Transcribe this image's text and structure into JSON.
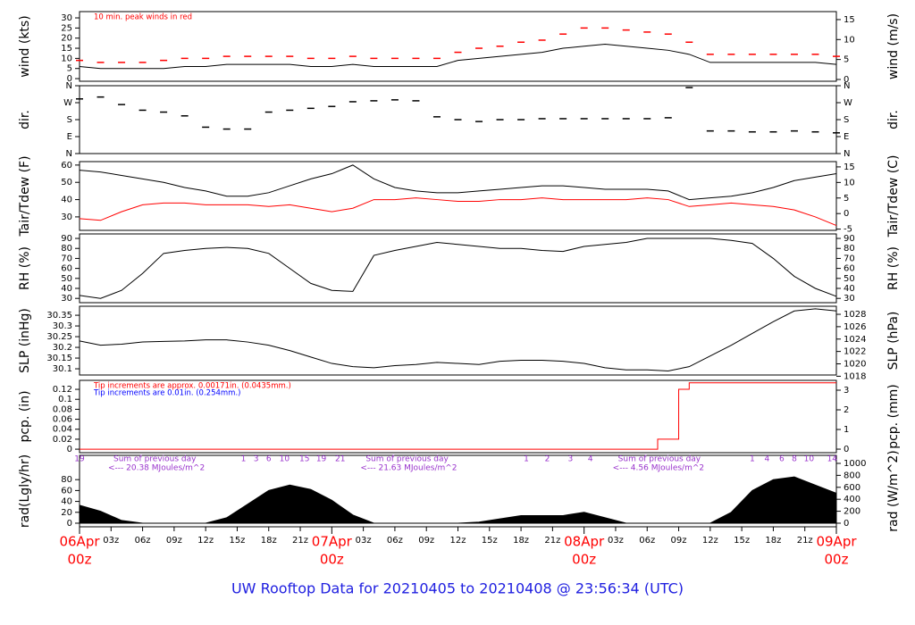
{
  "title": "UW Rooftop Data for 20210405  to  20210408 @ 23:56:34  (UTC)",
  "time_axis": {
    "xlim": [
      0,
      72
    ],
    "x": [
      0,
      2,
      4,
      6,
      8,
      10,
      12,
      14,
      16,
      18,
      20,
      22,
      24,
      26,
      28,
      30,
      32,
      34,
      36,
      38,
      40,
      42,
      44,
      46,
      48,
      50,
      52,
      54,
      56,
      58,
      60,
      62,
      64,
      66,
      68,
      70,
      72
    ],
    "xticks": [
      {
        "value": 3,
        "label": "03z"
      },
      {
        "value": 6,
        "label": "06z"
      },
      {
        "value": 9,
        "label": "09z"
      },
      {
        "value": 12,
        "label": "12z"
      },
      {
        "value": 15,
        "label": "15z"
      },
      {
        "value": 18,
        "label": "18z"
      },
      {
        "value": 21,
        "label": "21z"
      },
      {
        "value": 27,
        "label": "03z"
      },
      {
        "value": 30,
        "label": "06z"
      },
      {
        "value": 33,
        "label": "09z"
      },
      {
        "value": 36,
        "label": "12z"
      },
      {
        "value": 39,
        "label": "15z"
      },
      {
        "value": 42,
        "label": "18z"
      },
      {
        "value": 45,
        "label": "21z"
      },
      {
        "value": 51,
        "label": "03z"
      },
      {
        "value": 54,
        "label": "06z"
      },
      {
        "value": 57,
        "label": "09z"
      },
      {
        "value": 60,
        "label": "12z"
      },
      {
        "value": 63,
        "label": "15z"
      },
      {
        "value": 66,
        "label": "18z"
      },
      {
        "value": 69,
        "label": "21z"
      }
    ],
    "date_ticks": [
      {
        "value": 0,
        "date": "06Apr",
        "time": "00z"
      },
      {
        "value": 24,
        "date": "07Apr",
        "time": "00z"
      },
      {
        "value": 48,
        "date": "08Apr",
        "time": "00z"
      },
      {
        "value": 72,
        "date": "09Apr",
        "time": "00z"
      }
    ],
    "date_color": "#ff0000"
  },
  "chart_data": [
    {
      "type": "line",
      "y_label": "wind (kts)",
      "y2_label": "wind (m/s)",
      "ylim": [
        -1.3,
        33.1
      ],
      "yticks": [
        0,
        5,
        10,
        15,
        20,
        25,
        30
      ],
      "y2lim": [
        -0.45,
        17
      ],
      "y2ticks": [
        0,
        5,
        10,
        15
      ],
      "annotations": [
        {
          "text": "10 min. peak winds in red",
          "color": "#ff0000"
        }
      ],
      "series": [
        {
          "mark": "line",
          "color": "#000000",
          "values": [
            6,
            5,
            5,
            5,
            5,
            6,
            6,
            7,
            7,
            7,
            7,
            6,
            6,
            7,
            6,
            6,
            6,
            6,
            9,
            10,
            11,
            12,
            13,
            15,
            16,
            17,
            16,
            15,
            14,
            12,
            8,
            8,
            8,
            8,
            8,
            8,
            7
          ]
        },
        {
          "mark": "dash",
          "color": "#ff0000",
          "values": [
            9,
            8,
            8,
            8,
            9,
            10,
            10,
            11,
            11,
            11,
            11,
            10,
            10,
            11,
            10,
            10,
            10,
            10,
            13,
            15,
            16,
            18,
            19,
            22,
            25,
            25,
            24,
            23,
            22,
            18,
            12,
            12,
            12,
            12,
            12,
            12,
            11
          ]
        }
      ]
    },
    {
      "type": "scatter",
      "y_label": "dir.",
      "y2_label": "dir.",
      "mirror_ticks": true,
      "ylim": [
        0,
        360
      ],
      "yticks": [
        {
          "value": 0,
          "label": "N"
        },
        {
          "value": 90,
          "label": "E"
        },
        {
          "value": 180,
          "label": "S"
        },
        {
          "value": 270,
          "label": "W"
        },
        {
          "value": 360,
          "label": "N"
        }
      ],
      "series": [
        {
          "mark": "dash",
          "color": "#000000",
          "values": [
            290,
            300,
            260,
            230,
            220,
            200,
            140,
            130,
            130,
            220,
            230,
            240,
            250,
            275,
            280,
            285,
            280,
            195,
            180,
            170,
            180,
            180,
            185,
            185,
            185,
            185,
            185,
            185,
            190,
            350,
            120,
            120,
            115,
            115,
            120,
            115,
            110
          ]
        }
      ]
    },
    {
      "type": "line",
      "y_label": "Tair/Tdew (F)",
      "y2_label": "Tair/Tdew (C)",
      "ylim": [
        22.2,
        62
      ],
      "yticks": [
        30,
        40,
        50,
        60
      ],
      "y2lim": [
        -5.4,
        16.7
      ],
      "y2ticks": [
        -5,
        0,
        5,
        10,
        15
      ],
      "series": [
        {
          "mark": "line",
          "color": "#000000",
          "values": [
            57,
            56,
            54,
            52,
            50,
            47,
            45,
            42,
            42,
            44,
            48,
            52,
            55,
            60,
            52,
            47,
            45,
            44,
            44,
            45,
            46,
            47,
            48,
            48,
            47,
            46,
            46,
            46,
            45,
            40,
            41,
            42,
            44,
            47,
            51,
            53,
            55
          ]
        },
        {
          "mark": "line",
          "color": "#ff0000",
          "values": [
            29,
            28,
            33,
            37,
            38,
            38,
            37,
            37,
            37,
            36,
            37,
            35,
            33,
            35,
            40,
            40,
            41,
            40,
            39,
            39,
            40,
            40,
            41,
            40,
            40,
            40,
            40,
            41,
            40,
            36,
            37,
            38,
            37,
            36,
            34,
            30,
            25
          ]
        }
      ]
    },
    {
      "type": "line",
      "y_label": "RH (%)",
      "y2_label": "RH (%)",
      "mirror_ticks": true,
      "ylim": [
        25.7,
        94.5
      ],
      "yticks": [
        30,
        40,
        50,
        60,
        70,
        80,
        90
      ],
      "series": [
        {
          "mark": "line",
          "color": "#000000",
          "values": [
            33,
            30,
            38,
            55,
            75,
            78,
            80,
            81,
            80,
            75,
            60,
            45,
            38,
            37,
            73,
            78,
            82,
            86,
            84,
            82,
            80,
            80,
            78,
            77,
            82,
            84,
            86,
            90,
            90,
            90,
            90,
            88,
            85,
            70,
            52,
            40,
            32
          ]
        }
      ]
    },
    {
      "type": "line",
      "y_label": "SLP (inHg)",
      "y2_label": "SLP (hPa)",
      "ylim": [
        30.071,
        30.392
      ],
      "yticks": [
        30.1,
        30.15,
        30.2,
        30.25,
        30.3,
        30.35
      ],
      "y2lim": [
        1018.2,
        1029.3
      ],
      "y2ticks": [
        1018,
        1020,
        1022,
        1024,
        1026,
        1028
      ],
      "series": [
        {
          "mark": "line",
          "color": "#000000",
          "values": [
            30.23,
            30.21,
            30.215,
            30.225,
            30.228,
            30.23,
            30.235,
            30.235,
            30.225,
            30.21,
            30.185,
            30.155,
            30.125,
            30.11,
            30.105,
            30.115,
            30.12,
            30.13,
            30.125,
            30.12,
            30.135,
            30.14,
            30.14,
            30.135,
            30.125,
            30.105,
            30.095,
            30.095,
            30.09,
            30.11,
            30.16,
            30.21,
            30.265,
            30.32,
            30.37,
            30.38,
            30.37
          ]
        }
      ]
    },
    {
      "type": "line",
      "y_label": "pcp. (in)",
      "y2_label": "pcp. (mm)",
      "ylim": [
        -0.007,
        0.138
      ],
      "yticks": [
        0,
        0.02,
        0.04,
        0.06,
        0.08,
        0.1,
        0.12
      ],
      "y2lim": [
        -0.18,
        3.5
      ],
      "y2ticks": [
        0,
        1,
        2,
        3
      ],
      "annotations": [
        {
          "text": "Tip increments are approx. 0.00171in. (0.0435mm.)",
          "color": "#ff0000"
        },
        {
          "text": "Tip increments are 0.01in. (0.254mm.)",
          "color": "#0000ff"
        }
      ],
      "series": [
        {
          "mark": "line",
          "color": "#ff0000",
          "x": [
            0,
            55,
            55,
            57,
            57,
            58,
            58,
            72
          ],
          "values": [
            0,
            0,
            0.02,
            0.02,
            0.12,
            0.12,
            0.133,
            0.133
          ]
        }
      ]
    },
    {
      "type": "area",
      "y_label": "rad(Lgly/hr)",
      "y2_label": "rad (W/m^2)",
      "ylim": [
        -6.6,
        124.6
      ],
      "yticks": [
        0,
        20,
        40,
        60,
        80
      ],
      "y2lim": [
        -60,
        1134
      ],
      "y2ticks": [
        0,
        200,
        400,
        600,
        800,
        1000
      ],
      "annotation_color": "#9933cc",
      "markers": [
        {
          "x": 0,
          "label": "19"
        },
        {
          "x": 15.6,
          "label": "1"
        },
        {
          "x": 16.8,
          "label": "3"
        },
        {
          "x": 18,
          "label": "6"
        },
        {
          "x": 19.5,
          "label": "10"
        },
        {
          "x": 21.4,
          "label": "15"
        },
        {
          "x": 23,
          "label": "19"
        },
        {
          "x": 24.8,
          "label": "21"
        },
        {
          "x": 42.5,
          "label": "1"
        },
        {
          "x": 44.5,
          "label": "2"
        },
        {
          "x": 46.7,
          "label": "3"
        },
        {
          "x": 48.6,
          "label": "4"
        },
        {
          "x": 64,
          "label": "1"
        },
        {
          "x": 65.4,
          "label": "4"
        },
        {
          "x": 66.8,
          "label": "6"
        },
        {
          "x": 68,
          "label": "8"
        },
        {
          "x": 69.4,
          "label": "10"
        },
        {
          "x": 71.6,
          "label": "14"
        }
      ],
      "daily_sums": [
        {
          "title": "Sum of previous day",
          "text": "<--- 20.38 MJoules/m^2"
        },
        {
          "title": "Sum of previous day",
          "text": "<--- 21.63 MJoules/m^2"
        },
        {
          "title": "Sum of previous day",
          "text": "<--- 4.56 MJoules/m^2"
        }
      ],
      "series": [
        {
          "mark": "area",
          "color": "#000000",
          "values": [
            33,
            22,
            5,
            0,
            0,
            0,
            0,
            10,
            35,
            60,
            70,
            62,
            42,
            15,
            0,
            0,
            0,
            0,
            0,
            2,
            8,
            14,
            14,
            14,
            20,
            10,
            0,
            0,
            0,
            0,
            0,
            20,
            60,
            80,
            85,
            70,
            55
          ]
        }
      ]
    }
  ]
}
